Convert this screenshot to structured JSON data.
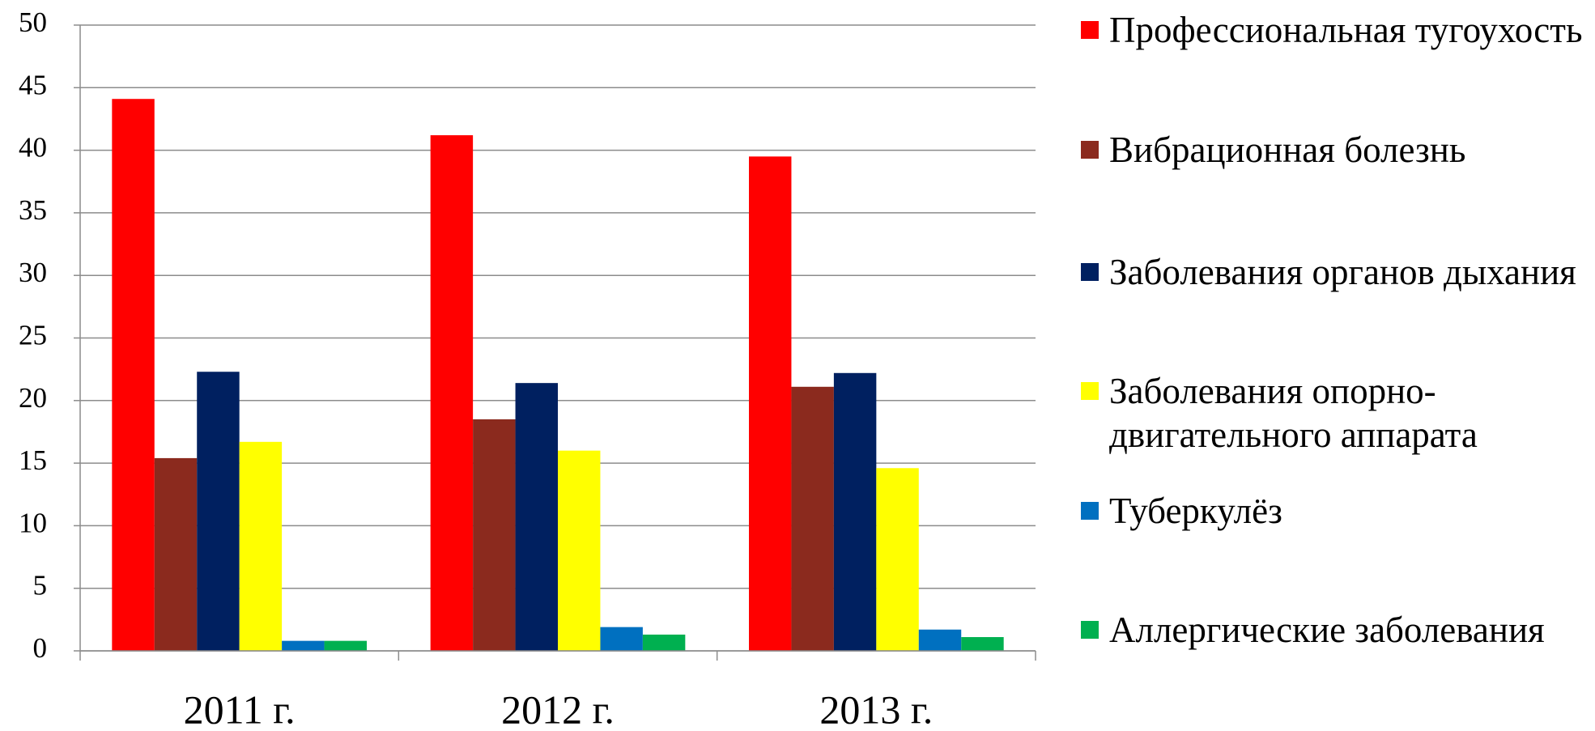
{
  "chart_data": {
    "type": "bar",
    "categories": [
      "2011 г.",
      "2012 г.",
      "2013 г."
    ],
    "series": [
      {
        "name": "Профессиональная тугоухость",
        "color": "#ff0000",
        "values": [
          44.1,
          41.2,
          39.5
        ]
      },
      {
        "name": "Вибрационная болезнь",
        "color": "#8b2a1e",
        "values": [
          15.4,
          18.5,
          21.1
        ]
      },
      {
        "name": "Заболевания органов дыхания",
        "color": "#002060",
        "values": [
          22.3,
          21.4,
          22.2
        ]
      },
      {
        "name": "Заболевания опорно-двигательного аппарата",
        "color": "#ffff00",
        "values": [
          16.7,
          16.0,
          14.6
        ]
      },
      {
        "name": "Туберкулёз",
        "color": "#0070c0",
        "values": [
          0.8,
          1.9,
          1.7
        ]
      },
      {
        "name": "Аллергические заболевания",
        "color": "#00b050",
        "values": [
          0.8,
          1.3,
          1.1
        ]
      }
    ],
    "ylim": [
      0,
      50
    ],
    "yticks": [
      0,
      5,
      10,
      15,
      20,
      25,
      30,
      35,
      40,
      45,
      50
    ],
    "grid": true,
    "legend": "right"
  }
}
